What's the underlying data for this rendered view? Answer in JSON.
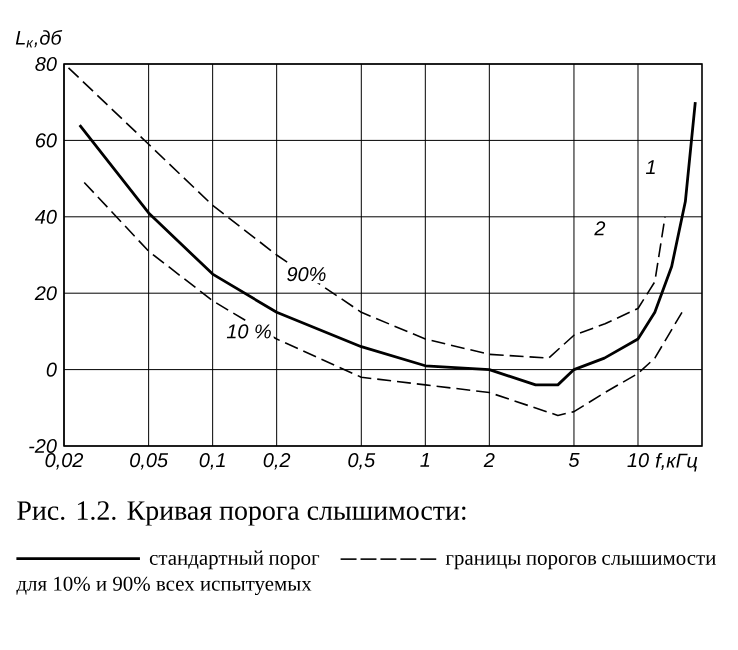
{
  "chart_data": {
    "type": "line",
    "title": "Рис. 1.2. Кривая порога слышимости:",
    "xlabel": "f,кГц",
    "ylabel": "L$_{к}$,дб",
    "log": "x",
    "grid": true,
    "legend": "bottom",
    "xlim": [
      0.02,
      20
    ],
    "ylim": [
      -20,
      80
    ],
    "xticks": [
      {
        "value": 0.02,
        "label": "0,02"
      },
      {
        "value": 0.05,
        "label": "0,05"
      },
      {
        "value": 0.1,
        "label": "0,1"
      },
      {
        "value": 0.2,
        "label": "0,2"
      },
      {
        "value": 0.5,
        "label": "0,5"
      },
      1,
      2,
      5,
      10
    ],
    "yticks": [
      -20,
      0,
      20,
      40,
      60,
      80
    ],
    "series": [
      {
        "name": "стандартный порог",
        "color": "#000000",
        "line_style": "solid",
        "x": [
          0.0237,
          0.05,
          0.1,
          0.2,
          0.5,
          1,
          2,
          3.3,
          4.2,
          5,
          6.95,
          10,
          12,
          14.4,
          16.7,
          18.6
        ],
        "values": [
          64,
          41,
          25,
          15,
          6,
          1,
          0,
          -4,
          -4,
          0,
          3,
          8,
          15,
          27,
          44,
          70
        ]
      },
      {
        "name": "границы порогов слышимости для 10% и 90% всех испытуемых",
        "color": "#000000",
        "line_style": "dashed",
        "x": [
          0.021,
          0.05,
          0.1,
          0.2,
          0.5,
          1,
          2,
          3.8,
          5,
          7,
          10,
          12,
          13.4
        ],
        "values": [
          79,
          59,
          43,
          30,
          15,
          8,
          4,
          3,
          9,
          12,
          16,
          23,
          40
        ]
      },
      {
        "color": "#000000",
        "line_style": "dashed",
        "x": [
          0.0249,
          0.05,
          0.1,
          0.2,
          0.5,
          1,
          2,
          4.2,
          5,
          7,
          10,
          12,
          16.1
        ],
        "values": [
          49,
          31,
          18,
          8,
          -2,
          -4,
          -6,
          -12,
          -11,
          -6,
          -1,
          3,
          15
        ]
      }
    ],
    "annotations": [
      "1",
      "2",
      "90%",
      "10 %"
    ]
  }
}
